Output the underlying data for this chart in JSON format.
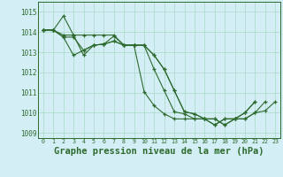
{
  "background_color": "#d4eef5",
  "grid_color": "#a8d8c8",
  "line_color": "#2d6a2d",
  "xlabel": "Graphe pression niveau de la mer (hPa)",
  "xlabel_fontsize": 7.5,
  "ylim": [
    1008.75,
    1015.5
  ],
  "xlim": [
    -0.5,
    23.5
  ],
  "yticks": [
    1009,
    1010,
    1011,
    1012,
    1013,
    1014,
    1015
  ],
  "xticks": [
    0,
    1,
    2,
    3,
    4,
    5,
    6,
    7,
    8,
    9,
    10,
    11,
    12,
    13,
    14,
    15,
    16,
    17,
    18,
    19,
    20,
    21,
    22,
    23
  ],
  "s1_x": [
    0,
    1,
    2,
    3,
    4,
    5,
    6,
    7,
    8,
    9,
    10,
    11,
    12,
    13,
    14,
    15,
    16,
    17,
    18,
    19,
    20,
    21
  ],
  "s1_y": [
    1014.1,
    1014.1,
    1014.8,
    1013.85,
    1012.85,
    1013.35,
    1013.4,
    1013.55,
    1013.35,
    1013.35,
    1011.05,
    1010.35,
    1009.95,
    1009.7,
    1009.7,
    1009.7,
    1009.7,
    1009.4,
    1009.7,
    1009.7,
    1010.0,
    1010.55
  ],
  "s2_x": [
    0,
    1,
    2,
    3,
    4,
    5,
    6,
    7,
    8,
    9,
    10,
    11,
    12,
    13,
    14,
    15,
    16,
    17,
    18,
    19,
    20,
    21
  ],
  "s2_y": [
    1014.1,
    1014.1,
    1013.75,
    1013.75,
    1013.1,
    1013.35,
    1013.4,
    1013.8,
    1013.35,
    1013.35,
    1013.35,
    1012.15,
    1011.1,
    1010.05,
    1009.95,
    1009.7,
    1009.7,
    1009.4,
    1009.7,
    1009.7,
    1010.0,
    1010.55
  ],
  "s3_x": [
    0,
    1,
    2,
    3,
    4,
    5,
    6,
    7,
    8,
    9,
    10,
    11,
    12,
    13,
    14,
    15,
    16,
    17,
    18,
    19,
    20,
    21,
    22
  ],
  "s3_y": [
    1014.1,
    1014.1,
    1013.75,
    1012.85,
    1013.1,
    1013.35,
    1013.4,
    1013.55,
    1013.35,
    1013.35,
    1013.35,
    1012.85,
    1012.15,
    1011.1,
    1010.05,
    1009.95,
    1009.7,
    1009.7,
    1009.4,
    1009.7,
    1009.7,
    1010.0,
    1010.55
  ],
  "s4_x": [
    0,
    1,
    2,
    3,
    4,
    5,
    6,
    7,
    8,
    9,
    10,
    11,
    12,
    13,
    14,
    15,
    16,
    17,
    18,
    19,
    20,
    21,
    22,
    23
  ],
  "s4_y": [
    1014.1,
    1014.1,
    1013.85,
    1013.85,
    1013.85,
    1013.85,
    1013.85,
    1013.85,
    1013.35,
    1013.35,
    1013.35,
    1012.85,
    1012.15,
    1011.1,
    1010.05,
    1009.95,
    1009.7,
    1009.7,
    1009.4,
    1009.7,
    1009.7,
    1010.0,
    1010.1,
    1010.55
  ]
}
